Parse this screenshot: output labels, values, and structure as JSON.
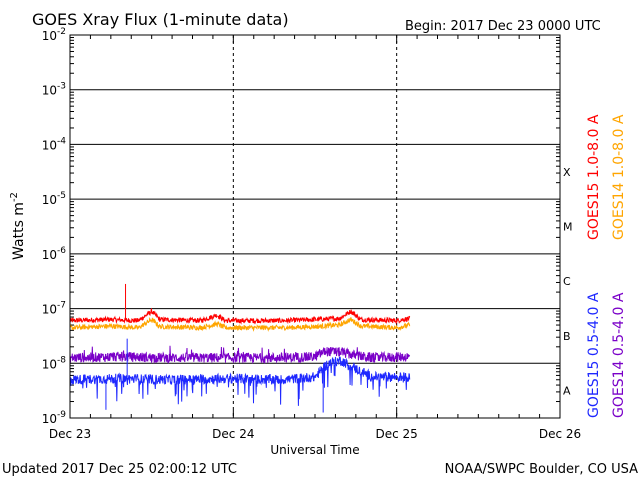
{
  "chart_data": {
    "type": "line",
    "title": "GOES Xray Flux (1-minute data)",
    "begin_label": "Begin:  2017 Dec 23 0000 UTC",
    "xlabel": "Universal Time",
    "ylabel_main": "Watts m",
    "ylabel_exp": "-2",
    "y_scale": "log",
    "ylim_exp": [
      -9,
      -2
    ],
    "y_ticks": [
      {
        "base": "10",
        "exp": "-9"
      },
      {
        "base": "10",
        "exp": "-8"
      },
      {
        "base": "10",
        "exp": "-7"
      },
      {
        "base": "10",
        "exp": "-6"
      },
      {
        "base": "10",
        "exp": "-5"
      },
      {
        "base": "10",
        "exp": "-4"
      },
      {
        "base": "10",
        "exp": "-3"
      },
      {
        "base": "10",
        "exp": "-2"
      }
    ],
    "x_days": [
      0,
      1,
      2,
      3
    ],
    "x_tick_labels": [
      "Dec 23",
      "Dec 24",
      "Dec 25",
      "Dec 26"
    ],
    "flare_classes": [
      "X",
      "M",
      "C",
      "B",
      "A"
    ],
    "flare_class_exps": [
      -4,
      -5,
      -6,
      -7,
      -8
    ],
    "grid": "horizontal lines at each decade, dashed vertical lines at day boundaries",
    "data_end_day": 2.08,
    "series": [
      {
        "name": "GOES15 1.0-8.0 A",
        "color": "#ff0000",
        "points": [
          [
            0,
            -7.22
          ],
          [
            0.25,
            -7.2
          ],
          [
            0.42,
            -7.22
          ],
          [
            0.5,
            -7.05
          ],
          [
            0.55,
            -7.2
          ],
          [
            0.8,
            -7.22
          ],
          [
            0.9,
            -7.12
          ],
          [
            0.95,
            -7.22
          ],
          [
            1.3,
            -7.22
          ],
          [
            1.5,
            -7.2
          ],
          [
            1.65,
            -7.18
          ],
          [
            1.72,
            -7.05
          ],
          [
            1.78,
            -7.2
          ],
          [
            2.0,
            -7.22
          ],
          [
            2.08,
            -7.18
          ]
        ],
        "spikes": [
          [
            0.34,
            -6.55
          ]
        ]
      },
      {
        "name": "GOES14 1.0-8.0 A",
        "color": "#ffa500",
        "points": [
          [
            0,
            -7.35
          ],
          [
            0.25,
            -7.32
          ],
          [
            0.42,
            -7.35
          ],
          [
            0.5,
            -7.2
          ],
          [
            0.55,
            -7.33
          ],
          [
            0.8,
            -7.35
          ],
          [
            0.9,
            -7.28
          ],
          [
            0.95,
            -7.35
          ],
          [
            1.3,
            -7.35
          ],
          [
            1.5,
            -7.33
          ],
          [
            1.65,
            -7.3
          ],
          [
            1.72,
            -7.2
          ],
          [
            1.78,
            -7.32
          ],
          [
            2.0,
            -7.35
          ],
          [
            2.08,
            -7.3
          ]
        ],
        "spikes": []
      },
      {
        "name": "GOES14 0.5-4.0 A",
        "color": "#7a00c8",
        "points": [
          [
            0,
            -7.9
          ],
          [
            0.3,
            -7.88
          ],
          [
            0.6,
            -7.9
          ],
          [
            1.0,
            -7.9
          ],
          [
            1.3,
            -7.9
          ],
          [
            1.5,
            -7.88
          ],
          [
            1.56,
            -7.78
          ],
          [
            1.66,
            -7.8
          ],
          [
            1.75,
            -7.86
          ],
          [
            1.85,
            -7.9
          ],
          [
            2.08,
            -7.88
          ]
        ],
        "spikes": []
      },
      {
        "name": "GOES15 0.5-4.0 A",
        "color": "#1e28ff",
        "points": [
          [
            0,
            -8.3
          ],
          [
            0.3,
            -8.28
          ],
          [
            0.6,
            -8.3
          ],
          [
            1.0,
            -8.28
          ],
          [
            1.3,
            -8.3
          ],
          [
            1.5,
            -8.25
          ],
          [
            1.58,
            -8.0
          ],
          [
            1.66,
            -7.95
          ],
          [
            1.75,
            -8.1
          ],
          [
            1.85,
            -8.25
          ],
          [
            2.08,
            -8.25
          ]
        ],
        "spikes": [
          [
            0.22,
            -8.85
          ],
          [
            0.35,
            -7.55
          ],
          [
            1.55,
            -8.9
          ]
        ]
      }
    ]
  },
  "legend_top": [
    "GOES15 1.0-8.0 A",
    "GOES14 1.0-8.0 A"
  ],
  "legend_bottom": [
    "GOES15 0.5-4.0 A",
    "GOES14 0.5-4.0 A"
  ],
  "footer": {
    "updated": "Updated 2017 Dec 25 02:00:12 UTC",
    "credit": "NOAA/SWPC Boulder, CO USA"
  }
}
